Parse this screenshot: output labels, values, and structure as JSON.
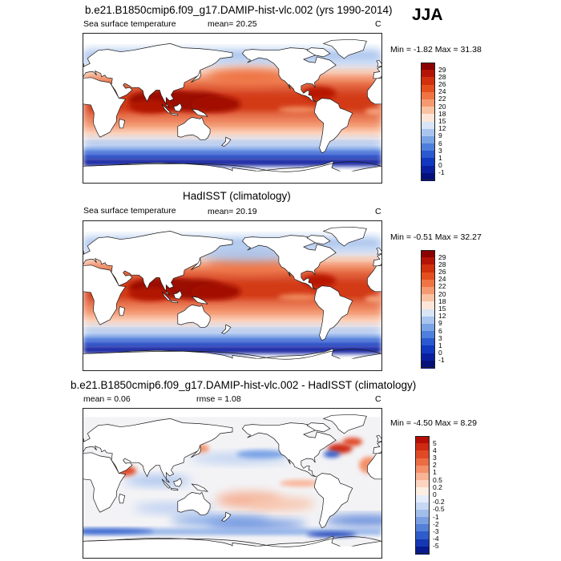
{
  "season": "JJA",
  "panels": [
    {
      "title": "b.e21.B1850cmip6.f09_g17.DAMIP-hist-vlc.002 (yrs 1990-2014)",
      "left_label": "Sea surface temperature",
      "mid_label": "mean=  20.25",
      "right_label": "C",
      "minmax": "Min =  -1.82 Max =  31.38",
      "colorbar": {
        "labels": [
          "29",
          "28",
          "26",
          "24",
          "22",
          "20",
          "18",
          "15",
          "12",
          "9",
          "6",
          "3",
          "1",
          "0",
          "-1"
        ],
        "colors": [
          "#8b0000",
          "#b41405",
          "#d0300b",
          "#e44f1e",
          "#ef7444",
          "#f59a70",
          "#f9c2a2",
          "#fde6d8",
          "#d7e5f7",
          "#a9c5ef",
          "#7aa3e5",
          "#4f7fdc",
          "#2a59d0",
          "#1238bf",
          "#0a1f9e",
          "#06107a"
        ]
      },
      "kind": "sst"
    },
    {
      "title": "HadISST (climatology)",
      "left_label": "Sea surface temperature",
      "mid_label": "mean=  20.19",
      "right_label": "C",
      "minmax": "Min =  -0.51 Max =  32.27",
      "colorbar": {
        "labels": [
          "29",
          "28",
          "26",
          "24",
          "22",
          "20",
          "18",
          "15",
          "12",
          "9",
          "6",
          "3",
          "1",
          "0",
          "-1"
        ],
        "colors": [
          "#8b0000",
          "#b41405",
          "#d0300b",
          "#e44f1e",
          "#ef7444",
          "#f59a70",
          "#f9c2a2",
          "#fde6d8",
          "#d7e5f7",
          "#a9c5ef",
          "#7aa3e5",
          "#4f7fdc",
          "#2a59d0",
          "#1238bf",
          "#0a1f9e",
          "#06107a"
        ]
      },
      "kind": "sst2"
    },
    {
      "title": "b.e21.B1850cmip6.f09_g17.DAMIP-hist-vlc.002 - HadISST (climatology)",
      "left_label": "mean =   0.06",
      "mid_label": "rmse =   1.08",
      "right_label": "C",
      "minmax": "Min =  -4.50 Max =   8.29",
      "colorbar": {
        "labels": [
          "5",
          "4",
          "3",
          "2",
          "1",
          "0.5",
          "0.2",
          "0",
          "-0.2",
          "-0.5",
          "-1",
          "-2",
          "-3",
          "-4",
          "-5"
        ],
        "colors": [
          "#b50f05",
          "#cf2a12",
          "#e04a26",
          "#ec6c44",
          "#f59068",
          "#f9b496",
          "#fcd4c0",
          "#fdeee4",
          "#e3ecfa",
          "#c6d8f4",
          "#a2bfec",
          "#7b9fe2",
          "#5480d8",
          "#2f5ccb",
          "#1537b4",
          "#071a8f"
        ]
      },
      "kind": "diff"
    }
  ]
}
